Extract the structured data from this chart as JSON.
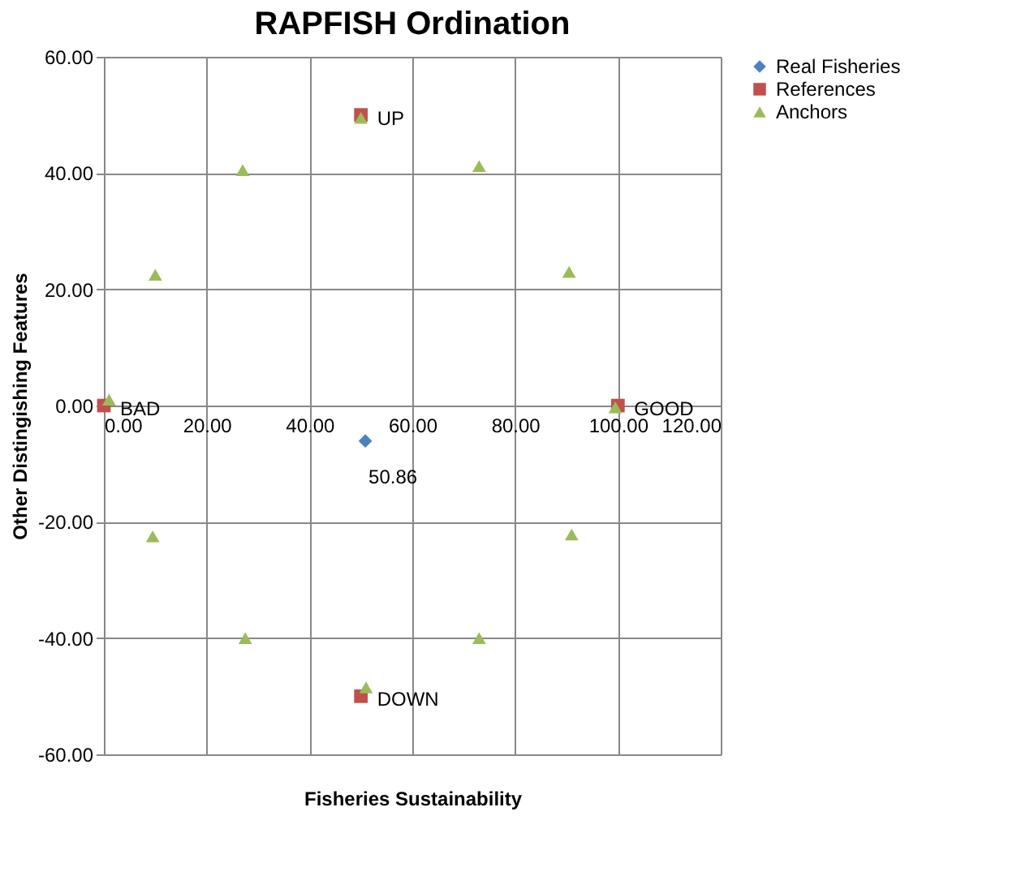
{
  "chart_data": {
    "type": "scatter",
    "title": "RAPFISH Ordination",
    "xlabel": "Fisheries Sustainability",
    "ylabel": "Other Distingishing Features",
    "xlim": [
      0,
      120
    ],
    "ylim": [
      -60,
      60
    ],
    "xticks": [
      {
        "value": 0,
        "label": "0.00"
      },
      {
        "value": 20,
        "label": "20.00"
      },
      {
        "value": 40,
        "label": "40.00"
      },
      {
        "value": 60,
        "label": "60.00"
      },
      {
        "value": 80,
        "label": "80.00"
      },
      {
        "value": 100,
        "label": "100.00"
      },
      {
        "value": 120,
        "label": "120.00"
      }
    ],
    "yticks": [
      {
        "value": -60,
        "label": "-60.00"
      },
      {
        "value": -40,
        "label": "-40.00"
      },
      {
        "value": -20,
        "label": "-20.00"
      },
      {
        "value": 0,
        "label": "0.00"
      },
      {
        "value": 20,
        "label": "20.00"
      },
      {
        "value": 40,
        "label": "40.00"
      },
      {
        "value": 60,
        "label": "60.00"
      }
    ],
    "grid": true,
    "legend": "right",
    "series": [
      {
        "name": "Real Fisheries",
        "color": "#4f81bd",
        "marker": "diamond",
        "x": [
          50.86
        ],
        "values": [
          -6.1
        ]
      },
      {
        "name": "References",
        "color": "#c0504d",
        "marker": "square",
        "x": [
          0,
          100,
          50,
          50
        ],
        "values": [
          0,
          0,
          50,
          -50
        ]
      },
      {
        "name": "Anchors",
        "color": "#9bbb59",
        "marker": "triangle",
        "x": [
          1,
          10,
          27,
          50,
          73,
          90.5,
          99.5,
          91,
          73,
          51,
          27.5,
          9.5
        ],
        "values": [
          1,
          22.5,
          40.5,
          49.5,
          41.2,
          23,
          -0.3,
          -22.2,
          -40,
          -48.5,
          -40,
          -22.5
        ]
      }
    ],
    "annotations": [
      {
        "text": "50.86",
        "x": 50.86,
        "y": -6.1
      },
      {
        "text": "BAD",
        "x": 0,
        "y": 0
      },
      {
        "text": "GOOD",
        "x": 100,
        "y": 0
      },
      {
        "text": "UP",
        "x": 50,
        "y": 50
      },
      {
        "text": "DOWN",
        "x": 50,
        "y": -50
      }
    ]
  }
}
